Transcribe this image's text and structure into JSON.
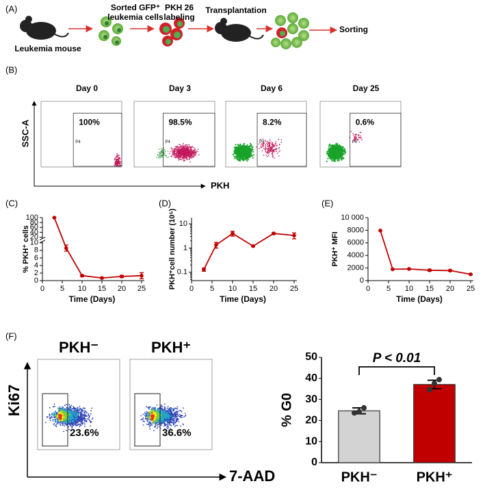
{
  "panel_labels": [
    "(A)",
    "(B)",
    "(C)",
    "(D)",
    "(E)",
    "(F)"
  ],
  "schematic": {
    "mouse_label": "Leukemia mouse",
    "sorted_cells": [
      "Sorted GFP⁺",
      "leukemia cells"
    ],
    "labeling": [
      "PKH 26",
      "labeling"
    ],
    "transplant": "Transplantation",
    "sorting": "Sorting"
  },
  "flow_b": {
    "y_label": "SSC-A",
    "x_label": "PKH",
    "gate_name": "P4",
    "plots": [
      {
        "title": "Day 0",
        "gate": "100%"
      },
      {
        "title": "Day 3",
        "gate": "98.5%"
      },
      {
        "title": "Day 6",
        "gate": "8.2%"
      },
      {
        "title": "Day 25",
        "gate": "0.6%"
      }
    ]
  },
  "flow_f": {
    "y_label": "Ki67",
    "x_label": "7-AAD",
    "plots": [
      {
        "title": "PKH⁻",
        "gate": "23.6%"
      },
      {
        "title": "PKH⁺",
        "gate": "36.6%"
      }
    ]
  },
  "chart_data": [
    {
      "type": "line",
      "color": "#c00000",
      "y_label": "% PKH⁺ cells",
      "x_label": "Time (Days)",
      "x": [
        3,
        6,
        10,
        15,
        20,
        25
      ],
      "values": [
        100,
        8.6,
        1.3,
        0.7,
        1.1,
        1.3
      ],
      "errors": [
        0,
        0.8,
        0.2,
        0.1,
        0.3,
        0.8
      ],
      "xlim": [
        0,
        25
      ],
      "xticks": [
        0,
        5,
        10,
        15,
        20,
        25
      ],
      "ylim": [
        0,
        100
      ],
      "yticks": [
        0,
        2,
        4,
        6,
        8,
        10,
        20,
        40,
        60,
        80,
        100
      ],
      "ybreak": [
        10,
        20
      ]
    },
    {
      "type": "line",
      "color": "#c00000",
      "y_label": "PKH⁺cell number (10⁵)",
      "x_label": "Time (Days)",
      "log_scale": true,
      "x": [
        3,
        6,
        10,
        15,
        20,
        25
      ],
      "values": [
        0.13,
        1.35,
        4.0,
        1.2,
        4.0,
        3.3
      ],
      "errors": [
        0.02,
        0.35,
        0.9,
        0.05,
        0.2,
        0.9
      ],
      "xlim": [
        0,
        25
      ],
      "xticks": [
        0,
        5,
        10,
        15,
        20,
        25
      ],
      "ylim": [
        0.045,
        18
      ],
      "yticks": [
        0.1,
        1,
        10
      ]
    },
    {
      "type": "line",
      "color": "#c00000",
      "y_label": "PKH⁺ MFI",
      "x_label": "Time (Days)",
      "x": [
        3,
        6,
        10,
        15,
        20,
        25
      ],
      "values": [
        7950,
        1800,
        1850,
        1650,
        1600,
        1000
      ],
      "errors": [
        0,
        50,
        50,
        150,
        120,
        50
      ],
      "xlim": [
        0,
        25
      ],
      "xticks": [
        0,
        5,
        10,
        15,
        20,
        25
      ],
      "ylim": [
        0,
        10000
      ],
      "yticks": [
        0,
        2000,
        4000,
        6000,
        8000,
        {
          "value": 10000,
          "label": "10 000"
        }
      ]
    },
    {
      "type": "bar",
      "y_label": "% G0",
      "annotation": "P < 0.01",
      "categories": [
        "PKH⁻",
        "PKH⁺"
      ],
      "colors": [
        "#d3d3d3",
        "#c00000"
      ],
      "values": [
        24.6,
        37.1
      ],
      "errors": [
        1.4,
        2.0
      ],
      "points": [
        [
          23.6,
          24.2,
          26.0
        ],
        [
          34.6,
          37.6,
          39.4
        ]
      ],
      "ylim": [
        0,
        50
      ],
      "yticks": [
        0,
        10,
        20,
        30,
        40,
        50
      ]
    }
  ]
}
